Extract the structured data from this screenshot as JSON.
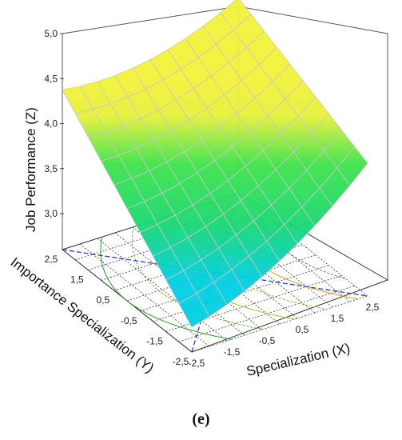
{
  "chart_data": {
    "type": "surface3d",
    "xlabel": "Specialization (X)",
    "ylabel": "Importance Specialization (Y)",
    "zlabel": "Job Performance (Z)",
    "x_ticks": [
      "-2,5",
      "-1,5",
      "-0,5",
      "0,5",
      "1,5",
      "2,5"
    ],
    "y_ticks": [
      "2,5",
      "1,5",
      "0,5",
      "-0,5",
      "-1,5",
      "-2,5"
    ],
    "z_ticks": [
      "3,0",
      "3,5",
      "4,0",
      "4,5",
      "5,0"
    ],
    "x_values": [
      -2.5,
      -1.5,
      -0.5,
      0.5,
      1.5,
      2.5
    ],
    "y_values": [
      2.5,
      1.5,
      0.5,
      -0.5,
      -1.5,
      -2.5
    ],
    "z_values": [
      3.0,
      3.5,
      4.0,
      4.5,
      5.0
    ],
    "xlim": [
      -2.5,
      2.5
    ],
    "ylim": [
      -2.5,
      2.5
    ],
    "zlim": [
      2.6,
      5.0
    ],
    "surface_corners": {
      "x_-2.5_y_2.5": 4.2,
      "x_2.5_y_2.5": 4.6,
      "x_2.5_y_-2.5": 3.9,
      "x_-2.5_y_-2.5": 2.7
    },
    "colormap": [
      "#00d8e8",
      "#2fe04a",
      "#eef43a"
    ],
    "grid": true
  },
  "panel_label": "(e)"
}
